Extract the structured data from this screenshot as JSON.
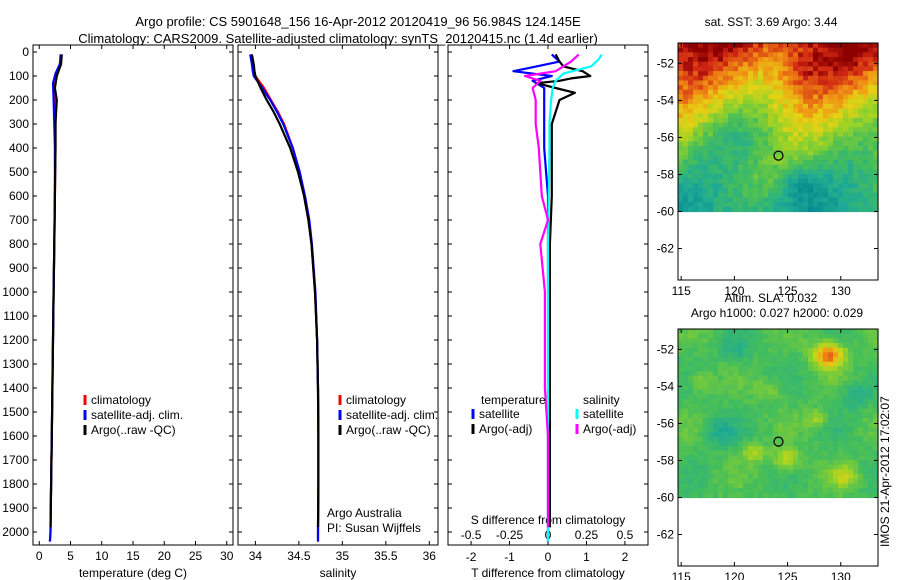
{
  "header": {
    "title_line1": "Argo profile: CS 5901648_156 16-Apr-2012 20120419_96 56.984S 124.145E",
    "title_line2": "Climatology: CARS2009. Satellite-adjusted climatology: synTS_20120415.nc (1.4d earlier)"
  },
  "colors": {
    "climatology": "#ff0000",
    "satellite": "#0000ff",
    "argo": "#000000",
    "salinity_satellite": "#00ffff",
    "salinity_argo": "#ff00ff"
  },
  "credits": {
    "line1": "Argo Australia",
    "line2": "PI: Susan Wijffels",
    "timestamp": "IMOS 21-Apr-2012 17:02:07"
  },
  "chart_data": [
    {
      "type": "line",
      "panel": "temperature",
      "xlabel": "temperature (deg C)",
      "ylabel": "",
      "xlim": [
        -1,
        31
      ],
      "ylim": [
        2080,
        0
      ],
      "xticks": [
        "0",
        "5",
        "10",
        "15",
        "20",
        "25",
        "30"
      ],
      "xtick_values": [
        0,
        5,
        10,
        15,
        20,
        25,
        30
      ],
      "yticks": [
        "0",
        "100",
        "200",
        "300",
        "400",
        "500",
        "600",
        "700",
        "800",
        "900",
        "1000",
        "1100",
        "1200",
        "1300",
        "1400",
        "1500",
        "1600",
        "1700",
        "1800",
        "1900",
        "2000"
      ],
      "ytick_values": [
        0,
        100,
        200,
        300,
        400,
        500,
        600,
        700,
        800,
        900,
        1000,
        1100,
        1200,
        1300,
        1400,
        1500,
        1600,
        1700,
        1800,
        1900,
        2000
      ],
      "legend": [
        "climatology",
        "satellite-adj. clim.",
        "Argo(..raw -QC)"
      ],
      "series": [
        {
          "name": "climatology",
          "color": "#ff0000",
          "depth": [
            10,
            50,
            100,
            150,
            200,
            300,
            400,
            600,
            800,
            1000,
            1200,
            1400,
            1600,
            1800,
            2000,
            2040
          ],
          "values": [
            3.4,
            3.3,
            2.7,
            2.4,
            2.5,
            2.6,
            2.6,
            2.5,
            2.4,
            2.3,
            2.2,
            2.1,
            2.0,
            1.9,
            1.8,
            1.7
          ]
        },
        {
          "name": "satellite-adj. clim.",
          "color": "#0000ff",
          "depth": [
            10,
            50,
            90,
            130,
            200,
            300,
            400,
            600,
            800,
            1000,
            1200,
            1400,
            1600,
            1800,
            2000,
            2040
          ],
          "values": [
            3.5,
            3.3,
            2.6,
            2.2,
            2.3,
            2.4,
            2.5,
            2.5,
            2.4,
            2.3,
            2.2,
            2.1,
            2.0,
            1.9,
            1.8,
            1.7
          ]
        },
        {
          "name": "Argo(..raw -QC)",
          "color": "#000000",
          "depth": [
            10,
            50,
            100,
            150,
            200,
            250,
            300,
            400,
            600,
            800,
            1000,
            1200,
            1400,
            1600,
            1800,
            1980
          ],
          "values": [
            3.6,
            3.5,
            2.8,
            2.5,
            2.8,
            2.7,
            2.6,
            2.6,
            2.5,
            2.4,
            2.3,
            2.2,
            2.1,
            2.0,
            1.9,
            1.8
          ]
        }
      ]
    },
    {
      "type": "line",
      "panel": "salinity",
      "xlabel": "salinity",
      "ylabel": "",
      "xlim": [
        33.8,
        36.1
      ],
      "ylim": [
        2080,
        0
      ],
      "xticks": [
        "34",
        "34.5",
        "35",
        "35.5",
        "36"
      ],
      "xtick_values": [
        34,
        34.5,
        35,
        35.5,
        36
      ],
      "legend": [
        "climatology",
        "satellite-adj. clim.",
        "Argo(..raw -QC)"
      ],
      "series": [
        {
          "name": "climatology",
          "color": "#ff0000",
          "depth": [
            10,
            50,
            80,
            100,
            150,
            200,
            250,
            300,
            400,
            500,
            600,
            700,
            800,
            1000,
            1200,
            1400,
            1600,
            1800,
            2000,
            2040
          ],
          "values": [
            33.95,
            33.97,
            33.98,
            34.0,
            34.1,
            34.18,
            34.26,
            34.33,
            34.43,
            34.51,
            34.56,
            34.61,
            34.645,
            34.685,
            34.71,
            34.72,
            34.725,
            34.725,
            34.72,
            34.72
          ]
        },
        {
          "name": "satellite-adj. clim.",
          "color": "#0000ff",
          "depth": [
            10,
            50,
            80,
            100,
            150,
            200,
            250,
            300,
            400,
            500,
            600,
            700,
            800,
            1000,
            1200,
            1400,
            1600,
            1800,
            2000,
            2040
          ],
          "values": [
            33.94,
            33.96,
            33.97,
            33.98,
            34.08,
            34.17,
            34.25,
            34.32,
            34.43,
            34.51,
            34.57,
            34.62,
            34.65,
            34.69,
            34.71,
            34.72,
            34.725,
            34.725,
            34.72,
            34.72
          ]
        },
        {
          "name": "Argo(..raw -QC)",
          "color": "#000000",
          "depth": [
            10,
            50,
            80,
            100,
            150,
            200,
            250,
            300,
            400,
            500,
            600,
            700,
            800,
            1000,
            1200,
            1400,
            1600,
            1800,
            1980
          ],
          "values": [
            33.96,
            33.98,
            33.99,
            34.0,
            34.06,
            34.13,
            34.21,
            34.28,
            34.4,
            34.49,
            34.56,
            34.61,
            34.645,
            34.685,
            34.71,
            34.72,
            34.725,
            34.725,
            34.72
          ]
        }
      ]
    },
    {
      "type": "line",
      "panel": "difference",
      "xlabel": "T difference from climatology",
      "xlabel_top": "S difference from climatology",
      "xlim": [
        -2.6,
        2.6
      ],
      "ylim": [
        2080,
        0
      ],
      "xticks": [
        "-2",
        "-1",
        "0",
        "1",
        "2"
      ],
      "xtick_values": [
        -2,
        -1,
        0,
        1,
        2
      ],
      "sticks": [
        "-0.5",
        "-0.25",
        "0",
        "0.25",
        "0.5"
      ],
      "stick_values": [
        -0.5,
        -0.25,
        0,
        0.25,
        0.5
      ],
      "legend_groups": [
        "temperature",
        "salinity"
      ],
      "legend": [
        "satellite",
        "Argo(-adj)",
        "satellite",
        "Argo(-adj)"
      ],
      "series": [
        {
          "name": "temperature satellite",
          "color": "#0000ff",
          "depth": [
            10,
            40,
            60,
            80,
            100,
            120,
            150,
            200,
            300,
            400,
            600,
            800,
            1000,
            1200,
            1400,
            1600,
            1800,
            2040
          ],
          "values": [
            0.1,
            0.3,
            -0.3,
            -0.9,
            0.1,
            -0.4,
            -0.1,
            -0.1,
            -0.1,
            -0.1,
            0,
            0,
            0,
            0,
            0,
            0,
            0,
            0
          ]
        },
        {
          "name": "temperature Argo(-adj)",
          "color": "#000000",
          "depth": [
            10,
            40,
            60,
            80,
            100,
            110,
            120,
            130,
            150,
            170,
            200,
            300,
            400,
            600,
            800,
            1000,
            1400,
            1800,
            1980
          ],
          "values": [
            0.2,
            0.3,
            0.4,
            0.9,
            1.1,
            0.6,
            0.3,
            -0.3,
            0.2,
            0.7,
            0.3,
            0.1,
            0.1,
            0.1,
            0.05,
            0.05,
            0.05,
            0.05,
            0.05
          ]
        },
        {
          "name": "salinity satellite",
          "color": "#00ffff",
          "depth": [
            10,
            30,
            60,
            90,
            120,
            150,
            200,
            300,
            400,
            600,
            800,
            1000,
            1200,
            1400,
            1600,
            1800,
            2040
          ],
          "values": [
            0.35,
            0.33,
            0.28,
            0.1,
            0.05,
            0.03,
            0.02,
            0.01,
            0.01,
            0.005,
            0,
            0,
            0,
            0,
            0,
            0,
            0
          ]
        },
        {
          "name": "salinity Argo(-adj)",
          "color": "#ff00ff",
          "depth": [
            10,
            40,
            80,
            100,
            120,
            150,
            200,
            300,
            400,
            600,
            700,
            800,
            1000,
            1200,
            1400,
            1600,
            1800,
            1980
          ],
          "values": [
            0.2,
            0.15,
            0.05,
            -0.15,
            -0.05,
            -0.1,
            -0.08,
            -0.08,
            -0.06,
            -0.04,
            0.0,
            -0.05,
            -0.02,
            -0.02,
            -0.02,
            0,
            0,
            0
          ]
        }
      ]
    },
    {
      "type": "heatmap",
      "panel": "sst-map",
      "title": "sat. SST: 3.69 Argo: 3.44",
      "xticks": [
        "115",
        "120",
        "125",
        "130"
      ],
      "xtick_values": [
        115,
        120,
        125,
        130
      ],
      "yticks": [
        "-52",
        "-54",
        "-56",
        "-58",
        "-60",
        "-62"
      ],
      "ytick_values": [
        -52,
        -54,
        -56,
        -58,
        -60,
        -62
      ],
      "xlim": [
        114.7,
        133.5
      ],
      "ylim": [
        -63.7,
        -50.9
      ],
      "data_lat_range": [
        -60,
        -50.9
      ],
      "argo_position": [
        124.145,
        -56.984
      ]
    },
    {
      "type": "heatmap",
      "panel": "sla-map",
      "title": "Altim. SLA: 0.032",
      "subtitle": "Argo h1000: 0.027 h2000: 0.029",
      "xticks": [
        "115",
        "120",
        "125",
        "130"
      ],
      "xtick_values": [
        115,
        120,
        125,
        130
      ],
      "yticks": [
        "-52",
        "-54",
        "-56",
        "-58",
        "-60",
        "-62"
      ],
      "ytick_values": [
        -52,
        -54,
        -56,
        -58,
        -60,
        -62
      ],
      "xlim": [
        114.7,
        133.5
      ],
      "ylim": [
        -63.7,
        -50.9
      ],
      "data_lat_range": [
        -60,
        -50.9
      ],
      "argo_position": [
        124.145,
        -56.984
      ]
    }
  ]
}
